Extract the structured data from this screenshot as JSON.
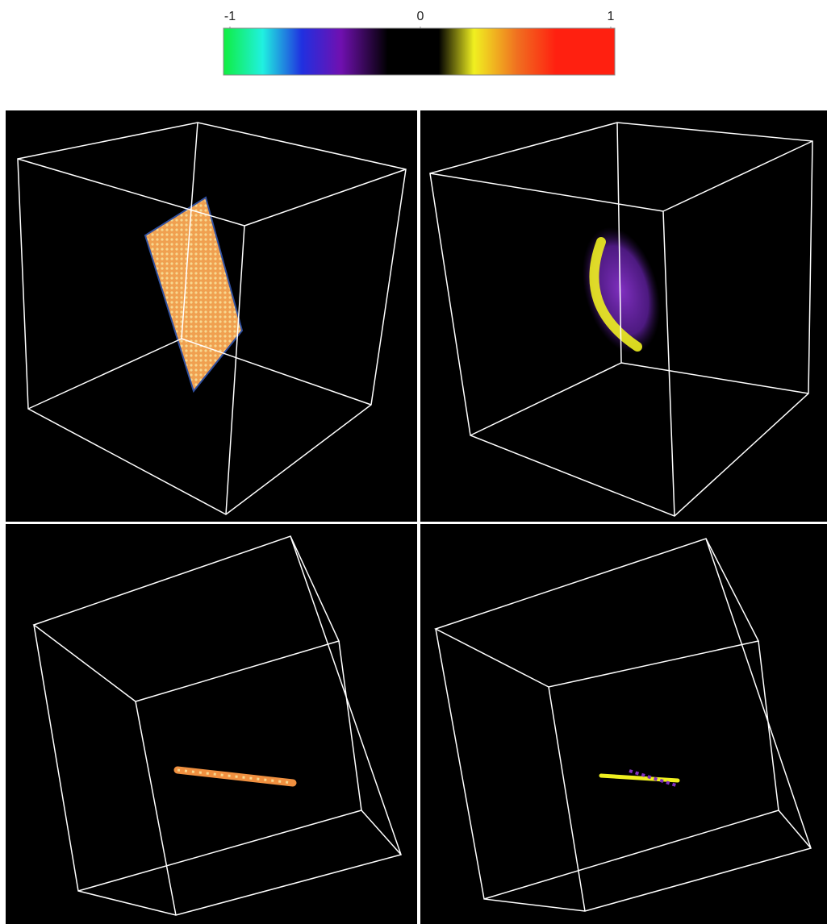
{
  "colorbar": {
    "lim": [
      -1,
      1
    ],
    "ticks": [
      -1,
      0,
      1
    ]
  }
}
